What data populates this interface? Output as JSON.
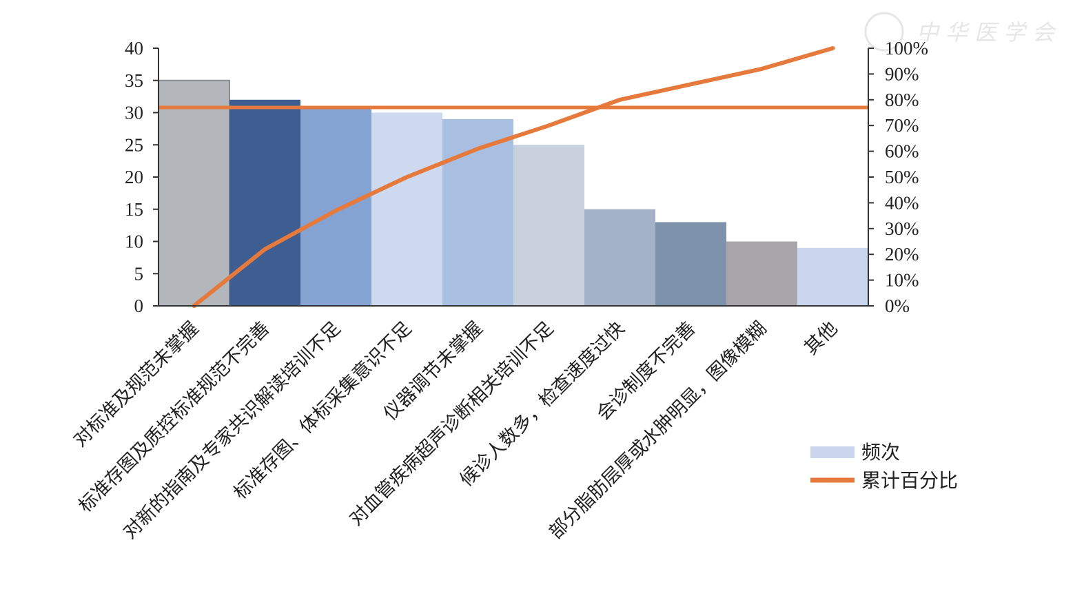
{
  "watermark": {
    "text": "中华医学会"
  },
  "chart_data": {
    "type": "bar",
    "subtype": "pareto",
    "categories": [
      "对标准及规范未掌握",
      "标准存图及质控标准规范不完善",
      "对新的指南及专家共识解读培训不足",
      "标准存图、体标采集意识不足",
      "仪器调节未掌握",
      "对血管疾病超声诊断相关培训不足",
      "候诊人数多，检查速度过快",
      "会诊制度不完善",
      "部分脂肪层厚或水肿明显，图像模糊",
      "其他"
    ],
    "series": [
      {
        "name": "频次",
        "type": "bar",
        "axis": "left",
        "values": [
          35,
          32,
          31,
          30,
          29,
          25,
          15,
          13,
          10,
          9
        ]
      },
      {
        "name": "累计百分比",
        "type": "line",
        "axis": "right",
        "values": [
          0,
          22,
          37,
          50,
          61,
          70,
          80,
          86,
          92,
          100
        ]
      }
    ],
    "reference_line": {
      "axis": "right",
      "value": 77
    },
    "y_left": {
      "ylim": [
        0,
        40
      ],
      "ticks": [
        "0",
        "5",
        "10",
        "15",
        "20",
        "25",
        "30",
        "35",
        "40"
      ]
    },
    "y_right": {
      "ylim": [
        0,
        100
      ],
      "ticks": [
        "0%",
        "10%",
        "20%",
        "30%",
        "40%",
        "50%",
        "60%",
        "70%",
        "80%",
        "90%",
        "100%"
      ]
    },
    "bar_colors": [
      "#b3b6bb",
      "#3e5d91",
      "#84a2d2",
      "#ccd9ee",
      "#a8bfe2",
      "#c8d1dd",
      "#a3b2c7",
      "#7f92ab",
      "#a9a6ab",
      "#c9d6ed"
    ],
    "line_color": "#e57a3c",
    "legend": {
      "position": "bottom-right"
    },
    "grid": false
  }
}
